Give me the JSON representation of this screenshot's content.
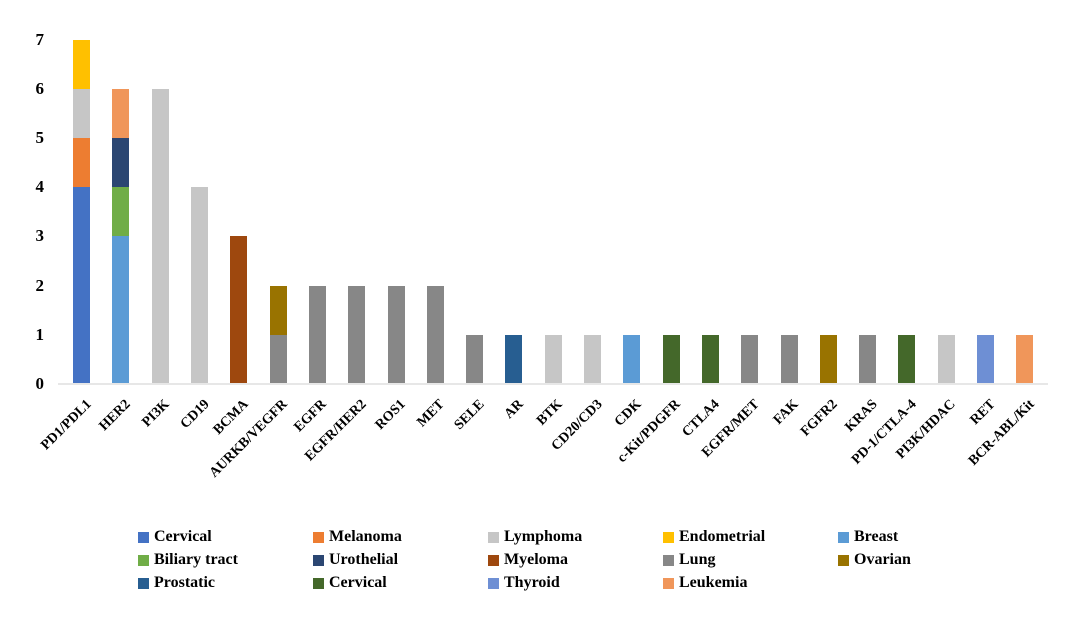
{
  "chart_data": {
    "type": "bar",
    "subtype": "stacked",
    "title": "",
    "xlabel": "",
    "ylabel": "",
    "ylim": [
      0,
      7
    ],
    "yticks": [
      0,
      1,
      2,
      3,
      4,
      5,
      6,
      7
    ],
    "grid": false,
    "legend_position": "bottom",
    "background_color": "#FFFFFF",
    "axis_line_color": "#E7E7E7",
    "categories": [
      "PD1/PDL1",
      "HER2",
      "PI3K",
      "CD19",
      "BCMA",
      "AURKB/VEGFR",
      "EGFR",
      "EGFR/HER2",
      "ROS1",
      "MET",
      "SELE",
      "AR",
      "BTK",
      "CD20/CD3",
      "CDK",
      "c-Kit/PDGFR",
      "CTLA4",
      "EGFR/MET",
      "FAK",
      "FGFR2",
      "KRAS",
      "PD-1/CTLA-4",
      "PI3K/HDAC",
      "RET",
      "BCR-ABL/Kit"
    ],
    "series": [
      {
        "name": "Cervical",
        "color": "#4472C4"
      },
      {
        "name": "Melanoma",
        "color": "#ED7D31"
      },
      {
        "name": "Lymphoma",
        "color": "#C6C6C6"
      },
      {
        "name": "Endometrial",
        "color": "#FFC000"
      },
      {
        "name": "Breast",
        "color": "#5B9BD5"
      },
      {
        "name": "Biliary tract",
        "color": "#70AD47"
      },
      {
        "name": "Urothelial",
        "color": "#2B4672"
      },
      {
        "name": "Myeloma",
        "color": "#9E480E"
      },
      {
        "name": "Lung",
        "color": "#878787"
      },
      {
        "name": "Ovarian",
        "color": "#997300"
      },
      {
        "name": "Prostatic",
        "color": "#275E91"
      },
      {
        "name": "Cervical",
        "color": "#44682A"
      },
      {
        "name": "Thyroid",
        "color": "#6E8FD4"
      },
      {
        "name": "Leukemia",
        "color": "#F0965A"
      }
    ],
    "bars": [
      {
        "category": "PD1/PDL1",
        "total": 7,
        "segments": [
          {
            "series": 0,
            "value": 4
          },
          {
            "series": 1,
            "value": 1
          },
          {
            "series": 2,
            "value": 1
          },
          {
            "series": 3,
            "value": 1
          }
        ]
      },
      {
        "category": "HER2",
        "total": 6,
        "segments": [
          {
            "series": 4,
            "value": 3
          },
          {
            "series": 5,
            "value": 1
          },
          {
            "series": 6,
            "value": 1
          },
          {
            "series": 13,
            "value": 1
          }
        ]
      },
      {
        "category": "PI3K",
        "total": 6,
        "segments": [
          {
            "series": 2,
            "value": 6
          }
        ]
      },
      {
        "category": "CD19",
        "total": 4,
        "segments": [
          {
            "series": 2,
            "value": 4
          }
        ]
      },
      {
        "category": "BCMA",
        "total": 3,
        "segments": [
          {
            "series": 7,
            "value": 3
          }
        ]
      },
      {
        "category": "AURKB/VEGFR",
        "total": 2,
        "segments": [
          {
            "series": 8,
            "value": 1
          },
          {
            "series": 9,
            "value": 1
          }
        ]
      },
      {
        "category": "EGFR",
        "total": 2,
        "segments": [
          {
            "series": 8,
            "value": 2
          }
        ]
      },
      {
        "category": "EGFR/HER2",
        "total": 2,
        "segments": [
          {
            "series": 8,
            "value": 2
          }
        ]
      },
      {
        "category": "ROS1",
        "total": 2,
        "segments": [
          {
            "series": 8,
            "value": 2
          }
        ]
      },
      {
        "category": "MET",
        "total": 2,
        "segments": [
          {
            "series": 8,
            "value": 2
          }
        ]
      },
      {
        "category": "SELE",
        "total": 1,
        "segments": [
          {
            "series": 8,
            "value": 1
          }
        ]
      },
      {
        "category": "AR",
        "total": 1,
        "segments": [
          {
            "series": 10,
            "value": 1
          }
        ]
      },
      {
        "category": "BTK",
        "total": 1,
        "segments": [
          {
            "series": 2,
            "value": 1
          }
        ]
      },
      {
        "category": "CD20/CD3",
        "total": 1,
        "segments": [
          {
            "series": 2,
            "value": 1
          }
        ]
      },
      {
        "category": "CDK",
        "total": 1,
        "segments": [
          {
            "series": 4,
            "value": 1
          }
        ]
      },
      {
        "category": "c-Kit/PDGFR",
        "total": 1,
        "segments": [
          {
            "series": 11,
            "value": 1
          }
        ]
      },
      {
        "category": "CTLA4",
        "total": 1,
        "segments": [
          {
            "series": 11,
            "value": 1
          }
        ]
      },
      {
        "category": "EGFR/MET",
        "total": 1,
        "segments": [
          {
            "series": 8,
            "value": 1
          }
        ]
      },
      {
        "category": "FAK",
        "total": 1,
        "segments": [
          {
            "series": 8,
            "value": 1
          }
        ]
      },
      {
        "category": "FGFR2",
        "total": 1,
        "segments": [
          {
            "series": 9,
            "value": 1
          }
        ]
      },
      {
        "category": "KRAS",
        "total": 1,
        "segments": [
          {
            "series": 8,
            "value": 1
          }
        ]
      },
      {
        "category": "PD-1/CTLA-4",
        "total": 1,
        "segments": [
          {
            "series": 11,
            "value": 1
          }
        ]
      },
      {
        "category": "PI3K/HDAC",
        "total": 1,
        "segments": [
          {
            "series": 2,
            "value": 1
          }
        ]
      },
      {
        "category": "RET",
        "total": 1,
        "segments": [
          {
            "series": 12,
            "value": 1
          }
        ]
      },
      {
        "category": "BCR-ABL/Kit",
        "total": 1,
        "segments": [
          {
            "series": 13,
            "value": 1
          }
        ]
      }
    ],
    "legend_rows": [
      [
        "Cervical",
        "Melanoma",
        "Lymphoma",
        "Endometrial",
        "Breast"
      ],
      [
        "Biliary tract",
        "Urothelial",
        "Myeloma",
        "Lung",
        "Ovarian"
      ],
      [
        "Prostatic",
        "Cervical",
        "Thyroid",
        "Leukemia"
      ]
    ]
  }
}
